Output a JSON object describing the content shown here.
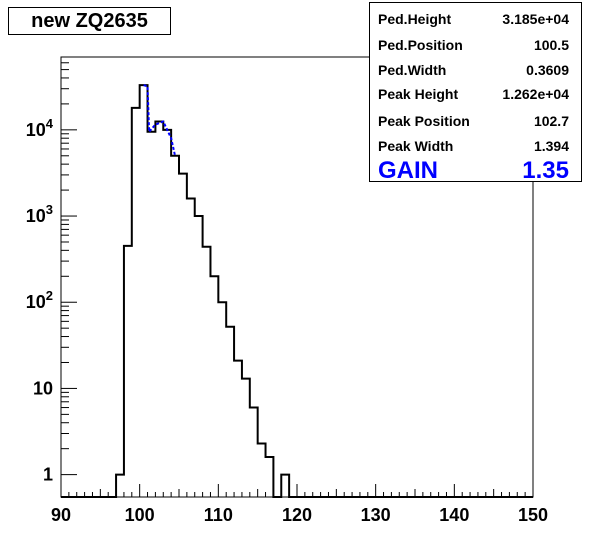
{
  "title": "new ZQ2635",
  "stats": [
    {
      "label": "Ped.Height",
      "value": "3.185e+04"
    },
    {
      "label": "Ped.Position",
      "value": "100.5"
    },
    {
      "label": "Ped.Width",
      "value": "0.3609"
    },
    {
      "label": "Peak Height",
      "value": "1.262e+04"
    },
    {
      "label": "Peak Position",
      "value": "102.7"
    },
    {
      "label": "Peak Width",
      "value": "1.394"
    }
  ],
  "gain": {
    "label": "GAIN",
    "value": "1.35"
  },
  "colors": {
    "histogram": "#000000",
    "fit": "#0000ff",
    "gain": "#0000ff"
  },
  "chart_data": {
    "type": "histogram",
    "title": "new ZQ2635",
    "xlim": [
      90,
      150
    ],
    "ylim": [
      0.55,
      70000
    ],
    "yscale": "log",
    "xticks": [
      90,
      100,
      110,
      120,
      130,
      140,
      150
    ],
    "xtick_labels": [
      "90",
      "100",
      "110",
      "120",
      "130",
      "140",
      "150"
    ],
    "yticks": [
      1,
      10,
      100,
      1000,
      10000
    ],
    "ytick_labels": [
      "1",
      "10",
      "10^2",
      "10^3",
      "10^4"
    ],
    "grid": false,
    "bin_width": 1,
    "bins": [
      {
        "x": 97,
        "y": 1
      },
      {
        "x": 98,
        "y": 450
      },
      {
        "x": 99,
        "y": 18000
      },
      {
        "x": 100,
        "y": 33000
      },
      {
        "x": 101,
        "y": 9500
      },
      {
        "x": 102,
        "y": 12500
      },
      {
        "x": 103,
        "y": 10000
      },
      {
        "x": 104,
        "y": 5000
      },
      {
        "x": 105,
        "y": 3100
      },
      {
        "x": 106,
        "y": 1600
      },
      {
        "x": 107,
        "y": 1000
      },
      {
        "x": 108,
        "y": 440
      },
      {
        "x": 109,
        "y": 200
      },
      {
        "x": 110,
        "y": 100
      },
      {
        "x": 111,
        "y": 52
      },
      {
        "x": 112,
        "y": 21
      },
      {
        "x": 113,
        "y": 13
      },
      {
        "x": 114,
        "y": 6
      },
      {
        "x": 115,
        "y": 2.3
      },
      {
        "x": 116,
        "y": 1.6
      },
      {
        "x": 118,
        "y": 1
      }
    ],
    "fit_series": {
      "color": "#0000ff",
      "style": "dashed",
      "points": [
        [
          100.5,
          33000
        ],
        [
          101,
          32000
        ],
        [
          101.2,
          9500
        ],
        [
          102,
          11500
        ],
        [
          103,
          12500
        ],
        [
          104,
          8000
        ],
        [
          104.5,
          5000
        ]
      ]
    }
  }
}
